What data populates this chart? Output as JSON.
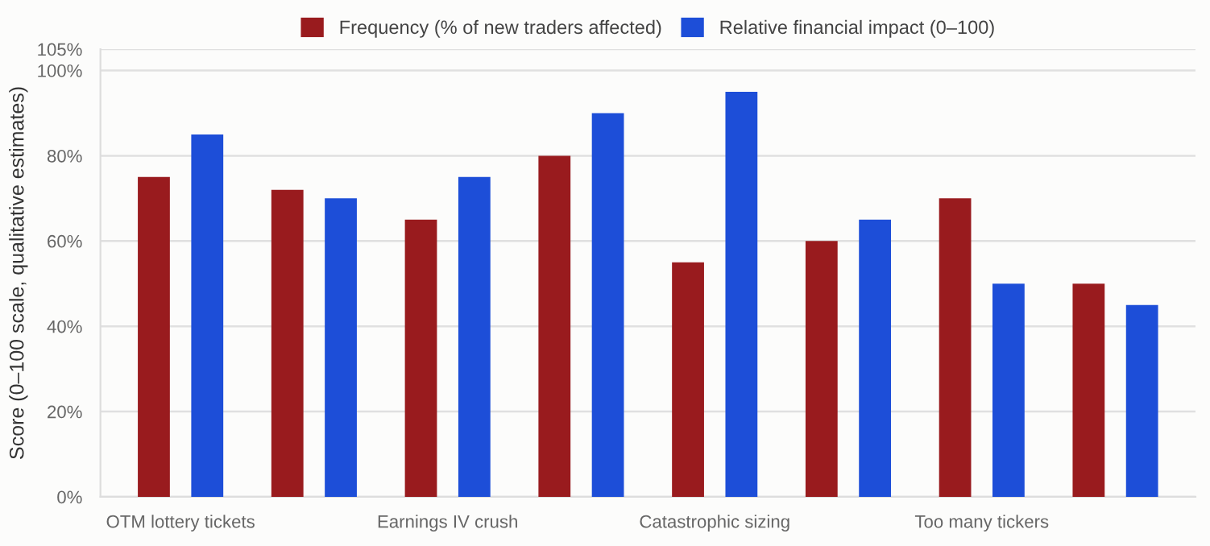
{
  "chart_data": {
    "type": "bar",
    "categories": [
      "OTM lottery tickets",
      null,
      "Earnings IV crush",
      null,
      "Catastrophic sizing",
      null,
      "Too many tickers",
      null
    ],
    "series": [
      {
        "name": "Frequency (% of new traders affected)",
        "color": "#991b1e",
        "values": [
          75,
          72,
          65,
          80,
          55,
          60,
          70,
          50
        ]
      },
      {
        "name": "Relative financial impact (0–100)",
        "color": "#1d4ed8",
        "values": [
          85,
          70,
          75,
          90,
          95,
          65,
          50,
          45
        ]
      }
    ],
    "ylabel": "Score (0–100 scale, qualitative estimates)",
    "ylim": [
      0,
      105
    ],
    "yticks": [
      {
        "value": 0,
        "label": "0%"
      },
      {
        "value": 20,
        "label": "20%"
      },
      {
        "value": 40,
        "label": "40%"
      },
      {
        "value": 60,
        "label": "60%"
      },
      {
        "value": 80,
        "label": "80%"
      },
      {
        "value": 100,
        "label": "100%"
      },
      {
        "value": 105,
        "label": "105%"
      }
    ],
    "grid": "y",
    "legend": "top"
  }
}
